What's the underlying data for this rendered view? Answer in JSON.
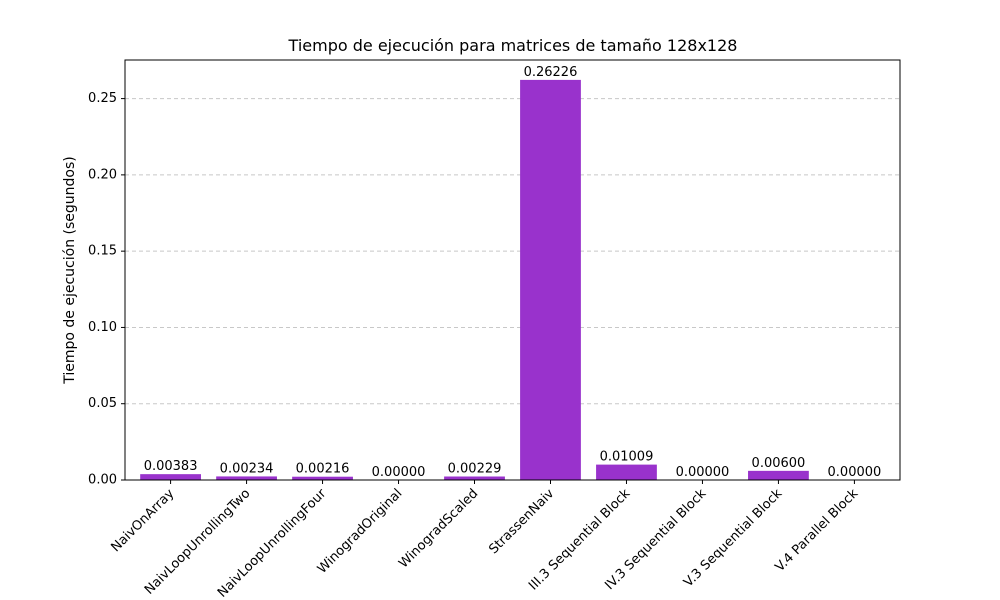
{
  "chart_data": {
    "type": "bar",
    "title": "Tiempo de ejecución para matrices de tamaño 128x128",
    "xlabel": "",
    "ylabel": "Tiempo de ejecución (segundos)",
    "categories": [
      "NaivOnArray",
      "NaivLoopUnrollingTwo",
      "NaivLoopUnrollingFour",
      "WinogradOriginal",
      "WinogradScaled",
      "StrassenNaiv",
      "III.3 Sequential Block",
      "IV.3 Sequential Block",
      "V.3 Sequential Block",
      "V.4 Parallel Block"
    ],
    "values": [
      0.00383,
      0.00234,
      0.00216,
      0.0,
      0.00229,
      0.26226,
      0.01009,
      0.0,
      0.006,
      0.0
    ],
    "value_labels": [
      "0.00383",
      "0.00234",
      "0.00216",
      "0.00000",
      "0.00229",
      "0.26226",
      "0.01009",
      "0.00000",
      "0.00600",
      "0.00000"
    ],
    "ylim": [
      0,
      0.2753
    ],
    "yticks": [
      0.0,
      0.05,
      0.1,
      0.15,
      0.2,
      0.25
    ],
    "ytick_labels": [
      "0.00",
      "0.05",
      "0.10",
      "0.15",
      "0.20",
      "0.25"
    ],
    "grid": "y-dashed",
    "bar_color": "#9932cc",
    "grid_color": "#c8c8c8"
  }
}
